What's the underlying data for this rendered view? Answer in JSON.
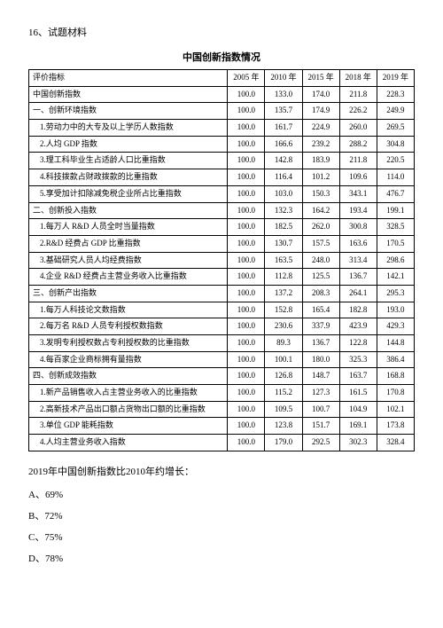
{
  "question_prefix": "16、试题材料",
  "caption": "中国创新指数情况",
  "columns": [
    "评价指标",
    "2005 年",
    "2010 年",
    "2015 年",
    "2018 年",
    "2019 年"
  ],
  "rows": [
    {
      "label": "中国创新指数",
      "indent": 0,
      "vals": [
        "100.0",
        "133.0",
        "174.0",
        "211.8",
        "228.3"
      ]
    },
    {
      "label": "一、创新环境指数",
      "indent": 0,
      "vals": [
        "100.0",
        "135.7",
        "174.9",
        "226.2",
        "249.9"
      ]
    },
    {
      "label": "1.劳动力中的大专及以上学历人数指数",
      "indent": 1,
      "vals": [
        "100.0",
        "161.7",
        "224.9",
        "260.0",
        "269.5"
      ]
    },
    {
      "label": "2.人均 GDP 指数",
      "indent": 1,
      "vals": [
        "100.0",
        "166.6",
        "239.2",
        "288.2",
        "304.8"
      ]
    },
    {
      "label": "3.理工科毕业生占适龄人口比重指数",
      "indent": 1,
      "vals": [
        "100.0",
        "142.8",
        "183.9",
        "211.8",
        "220.5"
      ]
    },
    {
      "label": "4.科技拨款占财政拨款的比重指数",
      "indent": 1,
      "vals": [
        "100.0",
        "116.4",
        "101.2",
        "109.6",
        "114.0"
      ]
    },
    {
      "label": "5.享受加计扣除减免税企业所占比重指数",
      "indent": 1,
      "vals": [
        "100.0",
        "103.0",
        "150.3",
        "343.1",
        "476.7"
      ]
    },
    {
      "label": "二、创新投入指数",
      "indent": 0,
      "vals": [
        "100.0",
        "132.3",
        "164.2",
        "193.4",
        "199.1"
      ]
    },
    {
      "label": "1.每万人 R&D 人员全时当量指数",
      "indent": 1,
      "vals": [
        "100.0",
        "182.5",
        "262.0",
        "300.8",
        "328.5"
      ]
    },
    {
      "label": "2.R&D 经费占 GDP 比重指数",
      "indent": 1,
      "vals": [
        "100.0",
        "130.7",
        "157.5",
        "163.6",
        "170.5"
      ]
    },
    {
      "label": "3.基础研究人员人均经费指数",
      "indent": 1,
      "vals": [
        "100.0",
        "163.5",
        "248.0",
        "313.4",
        "298.6"
      ]
    },
    {
      "label": "4.企业 R&D 经费占主营业务收入比重指数",
      "indent": 1,
      "vals": [
        "100.0",
        "112.8",
        "125.5",
        "136.7",
        "142.1"
      ]
    },
    {
      "label": "三、创新产出指数",
      "indent": 0,
      "vals": [
        "100.0",
        "137.2",
        "208.3",
        "264.1",
        "295.3"
      ]
    },
    {
      "label": "1.每万人科技论文数指数",
      "indent": 1,
      "vals": [
        "100.0",
        "152.8",
        "165.4",
        "182.8",
        "193.0"
      ]
    },
    {
      "label": "2.每万名 R&D 人员专利授权数指数",
      "indent": 1,
      "vals": [
        "100.0",
        "230.6",
        "337.9",
        "423.9",
        "429.3"
      ]
    },
    {
      "label": "3.发明专利授权数占专利授权数的比重指数",
      "indent": 1,
      "vals": [
        "100.0",
        "89.3",
        "136.7",
        "122.8",
        "144.8"
      ]
    },
    {
      "label": "4.每百家企业商标拥有量指数",
      "indent": 1,
      "vals": [
        "100.0",
        "100.1",
        "180.0",
        "325.3",
        "386.4"
      ]
    },
    {
      "label": "四、创新成效指数",
      "indent": 0,
      "vals": [
        "100.0",
        "126.8",
        "148.7",
        "163.7",
        "168.8"
      ]
    },
    {
      "label": "1.新产品销售收入占主营业务收入的比重指数",
      "indent": 1,
      "vals": [
        "100.0",
        "115.2",
        "127.3",
        "161.5",
        "170.8"
      ]
    },
    {
      "label": "2.高新技术产品出口额占货物出口额的比重指数",
      "indent": 1,
      "vals": [
        "100.0",
        "109.5",
        "100.7",
        "104.9",
        "102.1"
      ]
    },
    {
      "label": "3.单位 GDP 能耗指数",
      "indent": 1,
      "vals": [
        "100.0",
        "123.8",
        "151.7",
        "169.1",
        "173.8"
      ]
    },
    {
      "label": "4.人均主营业务收入指数",
      "indent": 1,
      "vals": [
        "100.0",
        "179.0",
        "292.5",
        "302.3",
        "328.4"
      ]
    }
  ],
  "question_text": "2019年中国创新指数比2010年约增长：",
  "options": [
    {
      "key": "A、",
      "text": "69%"
    },
    {
      "key": "B、",
      "text": "72%"
    },
    {
      "key": "C、",
      "text": "75%"
    },
    {
      "key": "D、",
      "text": "78%"
    }
  ]
}
